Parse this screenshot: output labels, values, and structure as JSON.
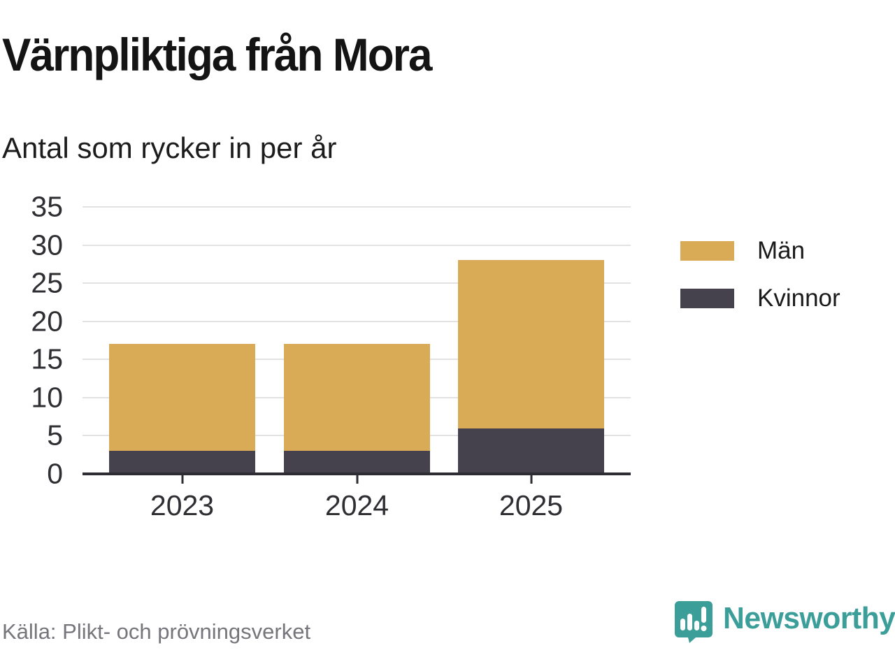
{
  "header": {
    "title": "Värnpliktiga från Mora",
    "subtitle": "Antal som rycker in per år"
  },
  "footer": {
    "source": "Källa: Plikt- och prövningsverket",
    "brand": "Newsworthy"
  },
  "colors": {
    "men": "#d9ab57",
    "women": "#45424e",
    "grid": "#e2e2e2",
    "axis": "#2e2d33",
    "brand_teal": "#3b9e98",
    "source_text": "#75757b"
  },
  "chart_data": {
    "type": "bar",
    "stacked": true,
    "title": "Värnpliktiga från Mora",
    "subtitle": "Antal som rycker in per år",
    "source": "Källa: Plikt- och prövningsverket",
    "categories": [
      "2023",
      "2024",
      "2025"
    ],
    "series": [
      {
        "name": "Män",
        "values": [
          14,
          14,
          22
        ],
        "color": "#d9ab57"
      },
      {
        "name": "Kvinnor",
        "values": [
          3,
          3,
          6
        ],
        "color": "#45424e"
      }
    ],
    "stack_order_bottom_to_top": [
      "Kvinnor",
      "Män"
    ],
    "totals": [
      17,
      17,
      28
    ],
    "ylim": [
      0,
      35
    ],
    "yticks": [
      0,
      5,
      10,
      15,
      20,
      25,
      30,
      35
    ],
    "grid": true,
    "legend_position": "right",
    "xlabel": "",
    "ylabel": ""
  }
}
